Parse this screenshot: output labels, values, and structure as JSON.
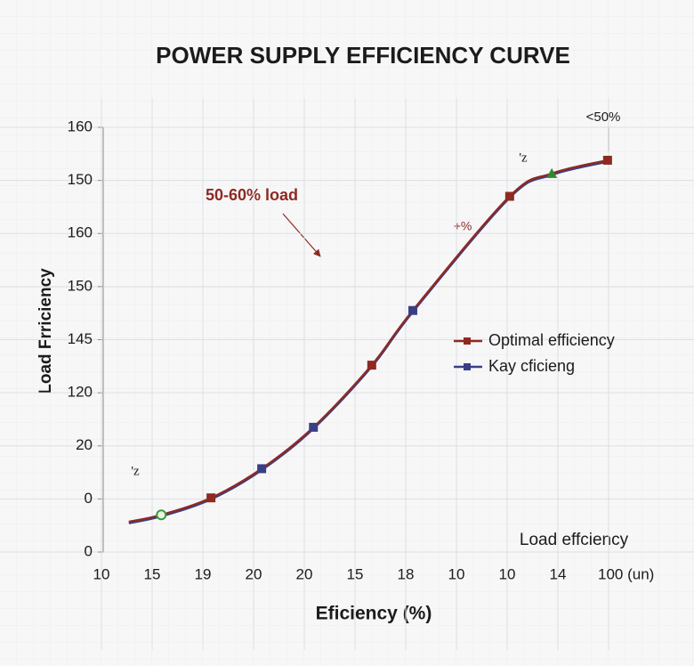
{
  "chart_data": {
    "type": "line",
    "title": "POWER SUPPLY EFFICIENCY CURVE",
    "x_label": "Eficiency (%)",
    "y_label": "Load Frriciency",
    "corner_label": "Load effciency",
    "xlim": [
      0,
      10
    ],
    "xticks": [
      {
        "value": 0,
        "label": "10"
      },
      {
        "value": 1,
        "label": "15"
      },
      {
        "value": 2,
        "label": "19"
      },
      {
        "value": 3,
        "label": "20"
      },
      {
        "value": 4,
        "label": "20"
      },
      {
        "value": 5,
        "label": "15"
      },
      {
        "value": 6,
        "label": "18"
      },
      {
        "value": 7,
        "label": "10"
      },
      {
        "value": 8,
        "label": "10"
      },
      {
        "value": 9,
        "label": "14"
      },
      {
        "value": 10,
        "label": "100 (un)"
      }
    ],
    "ylim": [
      0,
      8
    ],
    "yticks": [
      0,
      {
        "value": 1,
        "label": "0"
      },
      {
        "value": 2,
        "label": "20"
      },
      {
        "value": 3,
        "label": "120"
      },
      {
        "value": 4,
        "label": "145"
      },
      {
        "value": 5,
        "label": "150"
      },
      {
        "value": 6,
        "label": "160"
      },
      {
        "value": 7,
        "label": "150"
      },
      {
        "value": 8,
        "label": "160"
      }
    ],
    "grid": true,
    "legend": "right",
    "series": [
      {
        "name": "Optimal efficiency",
        "color": "#8e2a22",
        "x": [
          0.54,
          1.18,
          2.16,
          3.16,
          4.18,
          5.33,
          6.14,
          8.05,
          8.88,
          9.98
        ],
        "values": [
          0.57,
          0.7,
          1.02,
          1.57,
          2.35,
          3.52,
          4.55,
          6.7,
          7.13,
          7.38
        ],
        "marker_colors": [
          null,
          "#3a9a3a",
          "#8e2a22",
          "#3a3f85",
          "#3a3f85",
          "#8e2a22",
          "#3a3f85",
          "#8e2a22",
          "#2f8a2f",
          "#8e2a22"
        ],
        "marker_shapes": [
          null,
          "circle",
          "square",
          "square",
          "square",
          "square",
          "square",
          "square",
          "triangle",
          "square"
        ]
      },
      {
        "name": "Kay cficieng",
        "color": "#3a3f85",
        "x": [
          0.54,
          1.18,
          2.16,
          3.16,
          4.18,
          5.33,
          6.14,
          8.05,
          8.88,
          9.98
        ],
        "values": [
          0.57,
          0.7,
          1.02,
          1.57,
          2.35,
          3.52,
          4.55,
          6.7,
          7.13,
          7.38
        ]
      }
    ],
    "annotations": [
      "50-60% load",
      "+%",
      "<50%",
      "'z",
      "'z"
    ]
  }
}
